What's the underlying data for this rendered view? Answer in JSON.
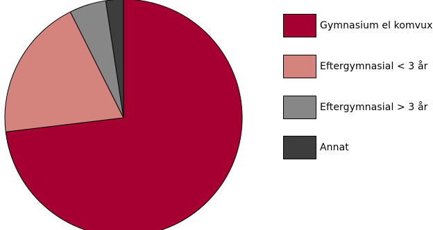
{
  "chart_data": {
    "type": "pie",
    "categories": [
      "Gymnasium el komvux",
      "Eftergymnasial < 3 år",
      "Eftergymnasial > 3 år",
      "Annat"
    ],
    "values": [
      73.1,
      19.5,
      5.0,
      2.4
    ],
    "colors": [
      "#a50031",
      "#d4837d",
      "#878787",
      "#3d3d3d"
    ],
    "start_angle_deg": 0,
    "direction": "clockwise",
    "legend_position": "right",
    "title": ""
  },
  "legend": {
    "items": [
      {
        "label": "Gymnasium el komvux",
        "color": "#a50031"
      },
      {
        "label": "Eftergymnasial < 3 år",
        "color": "#d4837d"
      },
      {
        "label": "Eftergymnasial > 3 år",
        "color": "#878787"
      },
      {
        "label": "Annat",
        "color": "#3d3d3d"
      }
    ]
  }
}
